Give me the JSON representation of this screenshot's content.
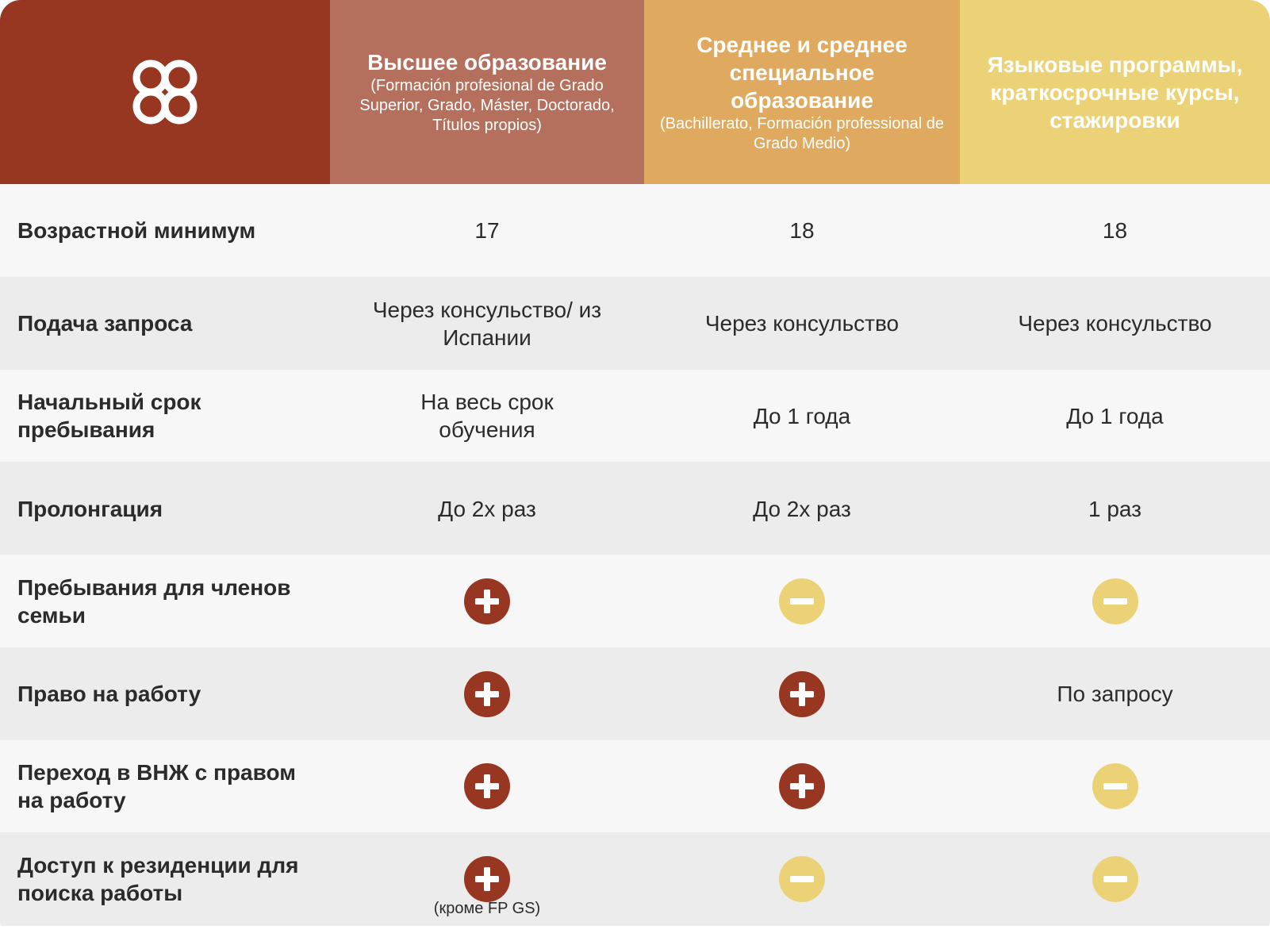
{
  "header": {
    "logo_icon": "quatrefoil-logo-icon",
    "columns": [
      {
        "title": "Высшее образование",
        "subtitle": "(Formación profesional de Grado Superior, Grado, Máster, Doctorado, Títulos propios)",
        "color": "#b5705d"
      },
      {
        "title": "Среднее и среднее специальное образование",
        "subtitle": "(Bachillerato, Formación professional de Grado Medio)",
        "color": "#dfaa5f"
      },
      {
        "title": "Языковые программы, краткосрочные курсы, стажировки",
        "subtitle": "",
        "color": "#ecd277"
      }
    ],
    "logo_color": "#973621"
  },
  "icons": {
    "plus": "plus-circle-icon",
    "minus": "minus-circle-icon",
    "plus_color": "#973621",
    "minus_color": "#ecd277"
  },
  "rows": [
    {
      "label": "Возрастной минимум",
      "cells": [
        {
          "type": "text",
          "text": "17"
        },
        {
          "type": "text",
          "text": "18"
        },
        {
          "type": "text",
          "text": "18"
        }
      ]
    },
    {
      "label": "Подача запроса",
      "cells": [
        {
          "type": "text",
          "text": "Через консульство/ из Испании"
        },
        {
          "type": "text",
          "text": "Через консульство"
        },
        {
          "type": "text",
          "text": "Через консульство"
        }
      ]
    },
    {
      "label": "Начальный срок пребывания",
      "cells": [
        {
          "type": "text",
          "text": "На весь срок обучения"
        },
        {
          "type": "text",
          "text": "До 1 года"
        },
        {
          "type": "text",
          "text": "До 1 года"
        }
      ]
    },
    {
      "label": "Пролонгация",
      "cells": [
        {
          "type": "text",
          "text": "До 2х раз"
        },
        {
          "type": "text",
          "text": "До 2х раз"
        },
        {
          "type": "text",
          "text": "1 раз"
        }
      ]
    },
    {
      "label": "Пребывания для членов семьи",
      "cells": [
        {
          "type": "plus"
        },
        {
          "type": "minus"
        },
        {
          "type": "minus"
        }
      ]
    },
    {
      "label": "Право на работу",
      "cells": [
        {
          "type": "plus"
        },
        {
          "type": "plus"
        },
        {
          "type": "text",
          "text": "По запросу"
        }
      ]
    },
    {
      "label": "Переход в ВНЖ с правом на работу",
      "cells": [
        {
          "type": "plus"
        },
        {
          "type": "plus"
        },
        {
          "type": "minus"
        }
      ]
    },
    {
      "label": "Доступ к резиденции для поиска работы",
      "cells": [
        {
          "type": "plus",
          "note": "(кроме FP GS)"
        },
        {
          "type": "minus"
        },
        {
          "type": "minus"
        }
      ]
    }
  ]
}
